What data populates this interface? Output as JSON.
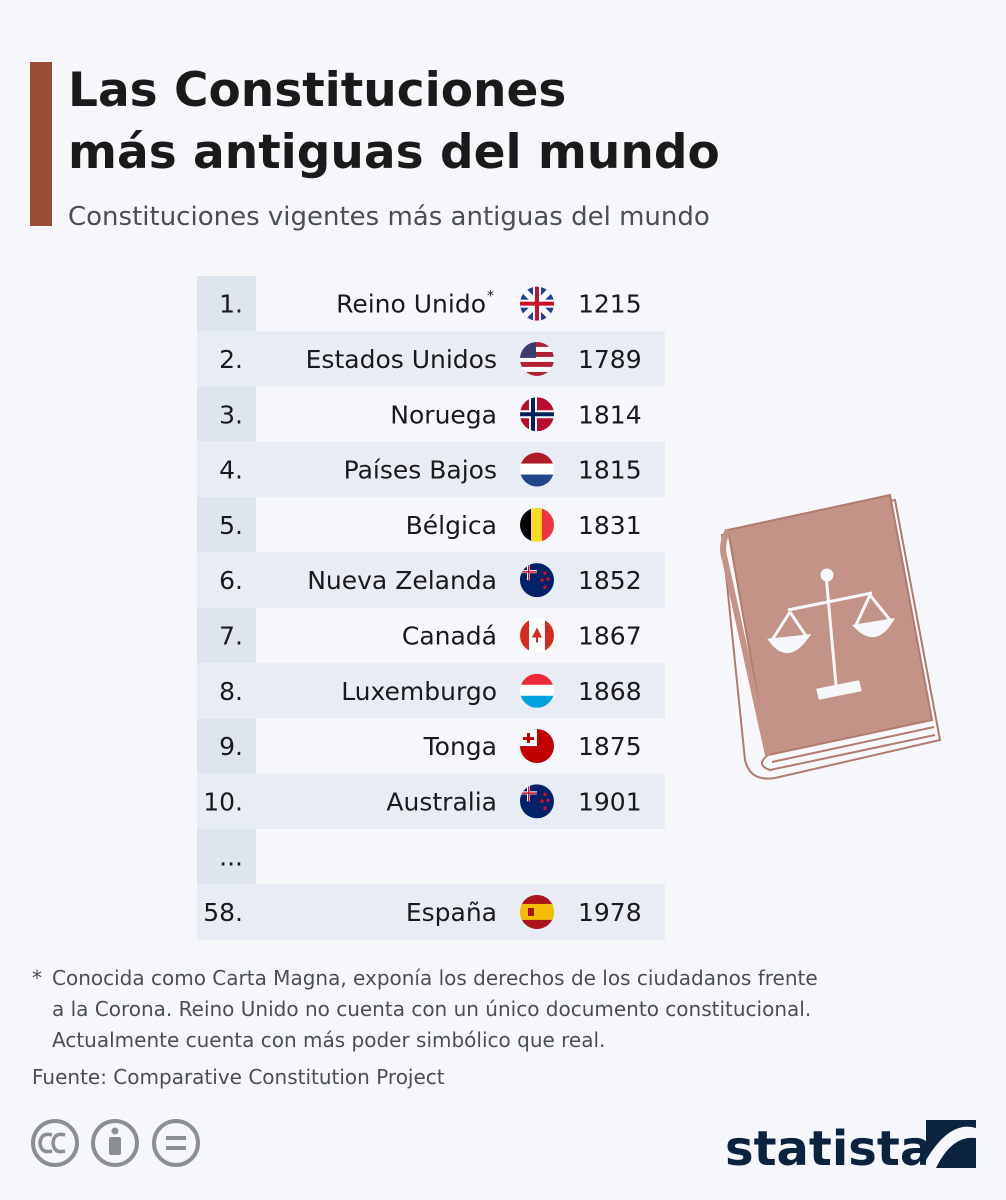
{
  "header": {
    "title": [
      "Las Constituciones",
      "más antiguas del mundo"
    ],
    "subtitle": "Constituciones vigentes más antiguas del mundo"
  },
  "table": {
    "rows": [
      {
        "rank": "1.",
        "country": "Reino Unido",
        "marker": "*",
        "year": "1215"
      },
      {
        "rank": "2.",
        "country": "Estados Unidos",
        "year": "1789"
      },
      {
        "rank": "3.",
        "country": "Noruega",
        "year": "1814"
      },
      {
        "rank": "4.",
        "country": "Países Bajos",
        "year": "1815"
      },
      {
        "rank": "5.",
        "country": "Bélgica",
        "year": "1831"
      },
      {
        "rank": "6.",
        "country": "Nueva Zelanda",
        "year": "1852"
      },
      {
        "rank": "7.",
        "country": "Canadá",
        "year": "1867"
      },
      {
        "rank": "8.",
        "country": "Luxemburgo",
        "year": "1868"
      },
      {
        "rank": "9.",
        "country": "Tonga",
        "year": "1875"
      },
      {
        "rank": "10.",
        "country": "Australia",
        "year": "1901"
      },
      {
        "rank": "..."
      },
      {
        "rank": "58.",
        "country": "España",
        "year": "1978"
      }
    ]
  },
  "footnote": {
    "marker": "*",
    "lines": [
      "Conocida como Carta Magna, exponía los derechos de los ciudadanos frente",
      "a la Corona. Reino Unido no cuenta con un único documento constitucional.",
      "Actualmente cuenta con más poder simbólico que real."
    ]
  },
  "source": "Fuente: Comparative Constitution Project",
  "logo": "statista"
}
